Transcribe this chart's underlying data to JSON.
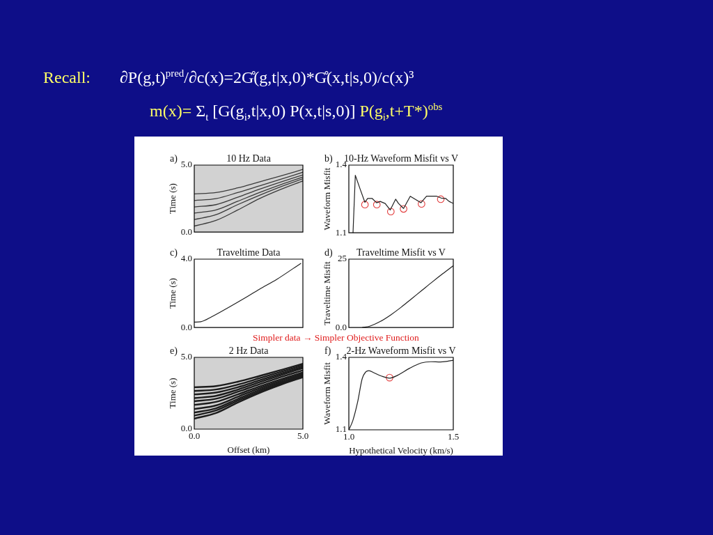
{
  "chart_data": [
    {
      "type": "other",
      "annotations": [
        "Recall:",
        "∂P(g,t)$^{pred}$/∂c(x)=2G̊(g,t|x,0)*G̊(x,t|s,0)/c(x)³",
        "m(x)=",
        "Σ$_{t}$ [G(g$_{i}$,t|x,0) P(x,t|s,0)]",
        "P(g$_{i}$,t+T*)$^{obs}$"
      ]
    },
    {
      "type": "line",
      "title": "10 Hz Data",
      "ylabel": "Time (s)",
      "annotations": [
        "a)"
      ],
      "x": [
        0,
        1,
        2,
        3,
        4,
        5
      ],
      "series": [
        {
          "color": "#3a3a3a",
          "values": [
            2.85,
            2.95,
            3.3,
            3.75,
            4.2,
            4.68
          ]
        },
        {
          "color": "#3a3a3a",
          "values": [
            2.36,
            2.5,
            2.95,
            3.45,
            3.95,
            4.47
          ]
        },
        {
          "color": "#3a3a3a",
          "values": [
            1.88,
            2.05,
            2.6,
            3.2,
            3.75,
            4.27
          ]
        },
        {
          "color": "#3a3a3a",
          "values": [
            1.42,
            1.65,
            2.3,
            2.95,
            3.55,
            4.11
          ]
        },
        {
          "color": "#3a3a3a",
          "values": [
            0.94,
            1.3,
            2.05,
            2.75,
            3.4,
            3.98
          ]
        },
        {
          "color": "#3a3a3a",
          "values": [
            0.45,
            0.87,
            1.65,
            2.5,
            3.2,
            3.82
          ]
        }
      ],
      "xlim": [
        0,
        5
      ],
      "ylim": [
        0,
        5
      ],
      "yticks": [
        {
          "value": 0,
          "label": "0.0"
        },
        {
          "value": 5,
          "label": "5.0"
        }
      ],
      "tick_labels": "y"
    },
    {
      "type": "line",
      "title": "10-Hz Waveform Misfit vs V",
      "ylabel": "Waveform Misfit",
      "annotations": [
        "b)"
      ],
      "series": [
        {
          "color": "#202020",
          "x": [
            1.02,
            1.031,
            1.054,
            1.077,
            1.09,
            1.112,
            1.133,
            1.15,
            1.174,
            1.198,
            1.224,
            1.238,
            1.262,
            1.294,
            1.345,
            1.372,
            1.421,
            1.442,
            1.464,
            1.48,
            1.5
          ],
          "values": [
            1.1,
            1.355,
            1.294,
            1.235,
            1.252,
            1.252,
            1.233,
            1.239,
            1.23,
            1.201,
            1.249,
            1.23,
            1.208,
            1.262,
            1.233,
            1.262,
            1.262,
            1.254,
            1.252,
            1.239,
            1.23
          ]
        },
        {
          "type": "scatter",
          "color": "#e23b3b",
          "marker": "circle",
          "x": [
            1.077,
            1.134,
            1.201,
            1.262,
            1.348,
            1.44
          ],
          "values": [
            1.225,
            1.225,
            1.194,
            1.206,
            1.228,
            1.249
          ]
        }
      ],
      "xlim": [
        1.0,
        1.5
      ],
      "ylim": [
        1.1,
        1.4
      ],
      "yticks": [
        1.1,
        1.4
      ],
      "tick_labels": "y"
    },
    {
      "type": "line",
      "title": "Traveltime Data",
      "ylabel": "Time (s)",
      "annotations": [
        "c)"
      ],
      "x": [
        0,
        0.3,
        0.8,
        1.5,
        2.4,
        3.0,
        3.8,
        4.9
      ],
      "series": [
        {
          "color": "#202020",
          "values": [
            0.32,
            0.34,
            0.63,
            1.12,
            1.78,
            2.24,
            2.82,
            3.75
          ]
        }
      ],
      "xlim": [
        0,
        5
      ],
      "ylim": [
        0,
        4
      ],
      "yticks": [
        {
          "value": 0,
          "label": "0.0"
        },
        {
          "value": 4,
          "label": "4.0"
        }
      ],
      "tick_labels": "y"
    },
    {
      "type": "line",
      "title": "Traveltime Misfit vs V",
      "ylabel": "Traveltime Misfit",
      "annotations": [
        "d)"
      ],
      "series": [
        {
          "color": "#202020",
          "x": [
            1.065,
            1.1,
            1.15,
            1.2,
            1.25,
            1.3,
            1.35,
            1.4,
            1.45,
            1.5
          ],
          "values": [
            0,
            0.5,
            2.2,
            4.6,
            7.4,
            10.5,
            13.6,
            16.7,
            19.7,
            22.6
          ]
        }
      ],
      "xlim": [
        1.0,
        1.5
      ],
      "ylim": [
        0,
        25
      ],
      "yticks": [
        {
          "value": 0,
          "label": "0.0"
        },
        25
      ],
      "tick_labels": "y"
    },
    {
      "type": "other",
      "annotations": [
        "Simpler data → Simpler Objective Function"
      ]
    },
    {
      "type": "line",
      "title": "2 Hz Data",
      "xlabel": "Offset (km)",
      "ylabel": "Time (s)",
      "annotations": [
        "e)"
      ],
      "x": [
        0,
        1,
        2,
        3,
        4,
        5
      ],
      "series": [
        {
          "color": "#1c1c1c",
          "values": [
            2.92,
            3.0,
            3.3,
            3.7,
            4.12,
            4.55
          ]
        },
        {
          "color": "#1c1c1c",
          "values": [
            2.66,
            2.76,
            3.1,
            3.55,
            4.0,
            4.45
          ]
        },
        {
          "color": "#1c1c1c",
          "values": [
            2.42,
            2.55,
            2.92,
            3.4,
            3.88,
            4.35
          ]
        },
        {
          "color": "#1c1c1c",
          "values": [
            2.16,
            2.32,
            2.75,
            3.27,
            3.77,
            4.25
          ]
        },
        {
          "color": "#1c1c1c",
          "values": [
            1.94,
            2.12,
            2.6,
            3.13,
            3.63,
            4.1
          ]
        },
        {
          "color": "#1c1c1c",
          "values": [
            1.69,
            1.9,
            2.42,
            2.97,
            3.48,
            3.95
          ]
        },
        {
          "color": "#1c1c1c",
          "values": [
            1.4,
            1.65,
            2.25,
            2.85,
            3.37,
            3.85
          ]
        },
        {
          "color": "#1c1c1c",
          "values": [
            1.15,
            1.45,
            2.1,
            2.73,
            3.27,
            3.78
          ]
        },
        {
          "color": "#1c1c1c",
          "values": [
            0.94,
            1.3,
            1.98,
            2.62,
            3.18,
            3.7
          ]
        },
        {
          "color": "#1c1c1c",
          "values": [
            0.73,
            1.12,
            1.85,
            2.52,
            3.1,
            3.62
          ]
        }
      ],
      "xlim": [
        0,
        5
      ],
      "ylim": [
        0,
        5
      ],
      "xticks": [
        {
          "value": 0,
          "label": "0.0"
        },
        {
          "value": 5,
          "label": "5.0"
        }
      ],
      "yticks": [
        {
          "value": 0,
          "label": "0.0"
        },
        {
          "value": 5,
          "label": "5.0"
        }
      ]
    },
    {
      "type": "line",
      "title": "2-Hz Waveform Misfit vs V",
      "xlabel": "Hypothetical Velocity (km/s)",
      "ylabel": "Waveform Misfit",
      "annotations": [
        "f)"
      ],
      "series": [
        {
          "color": "#202020",
          "x": [
            1.0,
            1.019,
            1.042,
            1.064,
            1.081,
            1.096,
            1.121,
            1.155,
            1.195,
            1.234,
            1.291,
            1.347,
            1.393,
            1.438,
            1.472,
            1.5
          ],
          "values": [
            1.1,
            1.138,
            1.215,
            1.312,
            1.34,
            1.345,
            1.336,
            1.323,
            1.314,
            1.326,
            1.355,
            1.377,
            1.382,
            1.381,
            1.384,
            1.388
          ]
        },
        {
          "type": "scatter",
          "color": "#e23b3b",
          "marker": "circle",
          "x": [
            1.195
          ],
          "values": [
            1.316
          ]
        }
      ],
      "xlim": [
        1.0,
        1.5
      ],
      "ylim": [
        1.1,
        1.4
      ],
      "xticks": [
        {
          "value": 1,
          "label": "1.0"
        },
        {
          "value": 1.5,
          "label": "1.5"
        }
      ],
      "yticks": [
        1.1,
        1.4
      ]
    }
  ]
}
